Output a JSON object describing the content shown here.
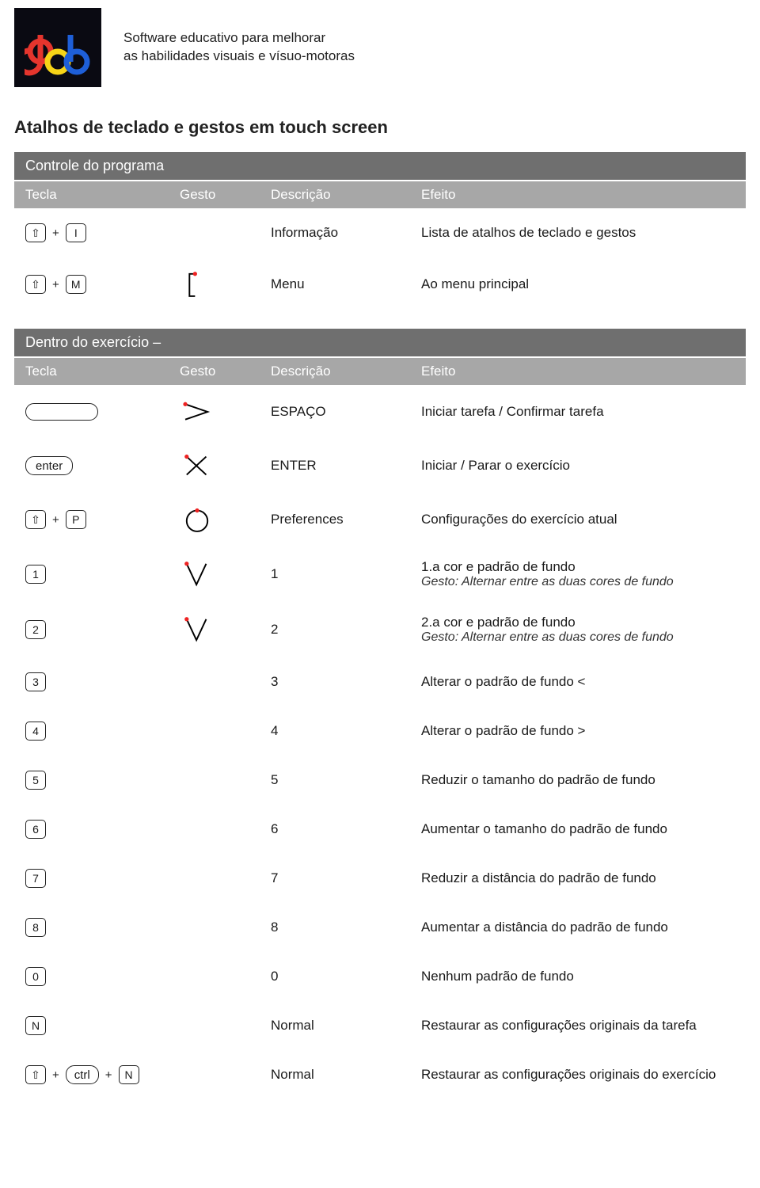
{
  "colors": {
    "section_bg": "#6f6f6f",
    "header_bg": "#a7a7a7",
    "header_text": "#ffffff",
    "body_text": "#1a1a1a",
    "key_border": "#222222",
    "logo_bg": "#0a0a12",
    "logo_red": "#e5352d",
    "logo_yellow": "#f7d417",
    "logo_blue": "#1e5fd8",
    "gesture_dot": "#e22222"
  },
  "tagline_l1": "Software educativo para melhorar",
  "tagline_l2": "as habilidades visuais e vísuo-motoras",
  "page_title": "Atalhos de teclado e gestos em touch screen",
  "col": {
    "tecla": "Tecla",
    "gesto": "Gesto",
    "descricao": "Descrição",
    "efeito": "Efeito"
  },
  "sections": [
    {
      "title": "Controle do programa",
      "rows": [
        {
          "keys": [
            "shift",
            "+",
            "I"
          ],
          "gesture": null,
          "desc": "Informação",
          "eff": "Lista de atalhos de teclado e gestos"
        },
        {
          "keys": [
            "shift",
            "+",
            "M"
          ],
          "gesture": "bracket",
          "desc": "Menu",
          "eff": "Ao menu principal"
        }
      ]
    },
    {
      "title": "Dentro do exercício –",
      "rows": [
        {
          "keys": [
            "space"
          ],
          "gesture": "swipe-right",
          "desc": "ESPAÇO",
          "eff": "Iniciar tarefa / Confirmar tarefa"
        },
        {
          "keys": [
            "enter"
          ],
          "gesture": "cross",
          "desc": "ENTER",
          "eff": "Iniciar / Parar o exercício"
        },
        {
          "keys": [
            "shift",
            "+",
            "P"
          ],
          "gesture": "circle",
          "desc": "Preferences",
          "eff": "Configurações do exercício atual"
        },
        {
          "keys": [
            "1"
          ],
          "gesture": "v-down",
          "desc": "1",
          "eff": "1.a cor e padrão de fundo",
          "eff_sub": "Gesto: Alternar entre as duas cores de fundo"
        },
        {
          "keys": [
            "2"
          ],
          "gesture": "v-down",
          "desc": "2",
          "eff": "2.a cor e padrão de fundo",
          "eff_sub": "Gesto: Alternar entre as duas cores de fundo"
        },
        {
          "keys": [
            "3"
          ],
          "gesture": null,
          "desc": "3",
          "eff": "Alterar o padrão de fundo <"
        },
        {
          "keys": [
            "4"
          ],
          "gesture": null,
          "desc": "4",
          "eff": "Alterar o padrão de fundo >"
        },
        {
          "keys": [
            "5"
          ],
          "gesture": null,
          "desc": "5",
          "eff": "Reduzir o tamanho do padrão de fundo"
        },
        {
          "keys": [
            "6"
          ],
          "gesture": null,
          "desc": "6",
          "eff": "Aumentar o tamanho do padrão de fundo"
        },
        {
          "keys": [
            "7"
          ],
          "gesture": null,
          "desc": "7",
          "eff": "Reduzir a distância do padrão de fundo"
        },
        {
          "keys": [
            "8"
          ],
          "gesture": null,
          "desc": "8",
          "eff": "Aumentar a distância do padrão de fundo"
        },
        {
          "keys": [
            "0"
          ],
          "gesture": null,
          "desc": "0",
          "eff": "Nenhum padrão de fundo"
        },
        {
          "keys": [
            "N"
          ],
          "gesture": null,
          "desc": "Normal",
          "eff": "Restaurar as configurações originais da tarefa"
        },
        {
          "keys": [
            "shift",
            "+",
            "ctrl",
            "+",
            "N"
          ],
          "gesture": null,
          "desc": "Normal",
          "eff": "Restaurar as configurações originais do exercício"
        }
      ]
    }
  ]
}
